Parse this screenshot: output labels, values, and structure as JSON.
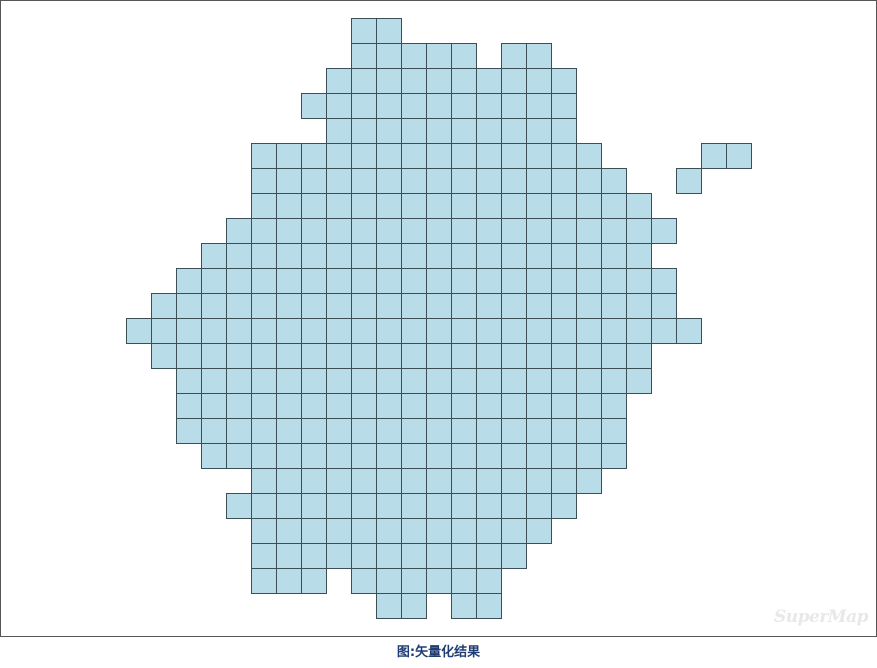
{
  "caption": "图:矢量化结果",
  "watermark": "SuperMap",
  "colors": {
    "cell_fill": "#b9dde8",
    "cell_stroke": "#3c4f57",
    "caption": "#1f3d73"
  },
  "raster_rows": [
    {
      "row": 0,
      "cols": [
        [
          9,
          10
        ]
      ]
    },
    {
      "row": 1,
      "cols": [
        [
          9,
          13
        ],
        [
          15,
          16
        ]
      ]
    },
    {
      "row": 2,
      "cols": [
        [
          8,
          17
        ]
      ]
    },
    {
      "row": 3,
      "cols": [
        [
          7,
          17
        ]
      ]
    },
    {
      "row": 4,
      "cols": [
        [
          8,
          17
        ]
      ]
    },
    {
      "row": 5,
      "cols": [
        [
          5,
          18
        ],
        [
          23,
          24
        ]
      ]
    },
    {
      "row": 6,
      "cols": [
        [
          5,
          19
        ],
        [
          22,
          22
        ]
      ]
    },
    {
      "row": 7,
      "cols": [
        [
          5,
          20
        ]
      ]
    },
    {
      "row": 8,
      "cols": [
        [
          4,
          21
        ]
      ]
    },
    {
      "row": 9,
      "cols": [
        [
          3,
          20
        ]
      ]
    },
    {
      "row": 10,
      "cols": [
        [
          2,
          21
        ]
      ]
    },
    {
      "row": 11,
      "cols": [
        [
          1,
          21
        ]
      ]
    },
    {
      "row": 12,
      "cols": [
        [
          0,
          22
        ]
      ]
    },
    {
      "row": 13,
      "cols": [
        [
          1,
          20
        ]
      ]
    },
    {
      "row": 14,
      "cols": [
        [
          2,
          20
        ]
      ]
    },
    {
      "row": 15,
      "cols": [
        [
          2,
          19
        ]
      ]
    },
    {
      "row": 16,
      "cols": [
        [
          2,
          19
        ]
      ]
    },
    {
      "row": 17,
      "cols": [
        [
          3,
          19
        ]
      ]
    },
    {
      "row": 18,
      "cols": [
        [
          5,
          18
        ]
      ]
    },
    {
      "row": 19,
      "cols": [
        [
          4,
          17
        ]
      ]
    },
    {
      "row": 20,
      "cols": [
        [
          5,
          16
        ]
      ]
    },
    {
      "row": 21,
      "cols": [
        [
          5,
          15
        ]
      ]
    },
    {
      "row": 22,
      "cols": [
        [
          5,
          7
        ],
        [
          9,
          14
        ]
      ]
    },
    {
      "row": 23,
      "cols": [
        [
          10,
          11
        ],
        [
          13,
          14
        ]
      ]
    }
  ]
}
